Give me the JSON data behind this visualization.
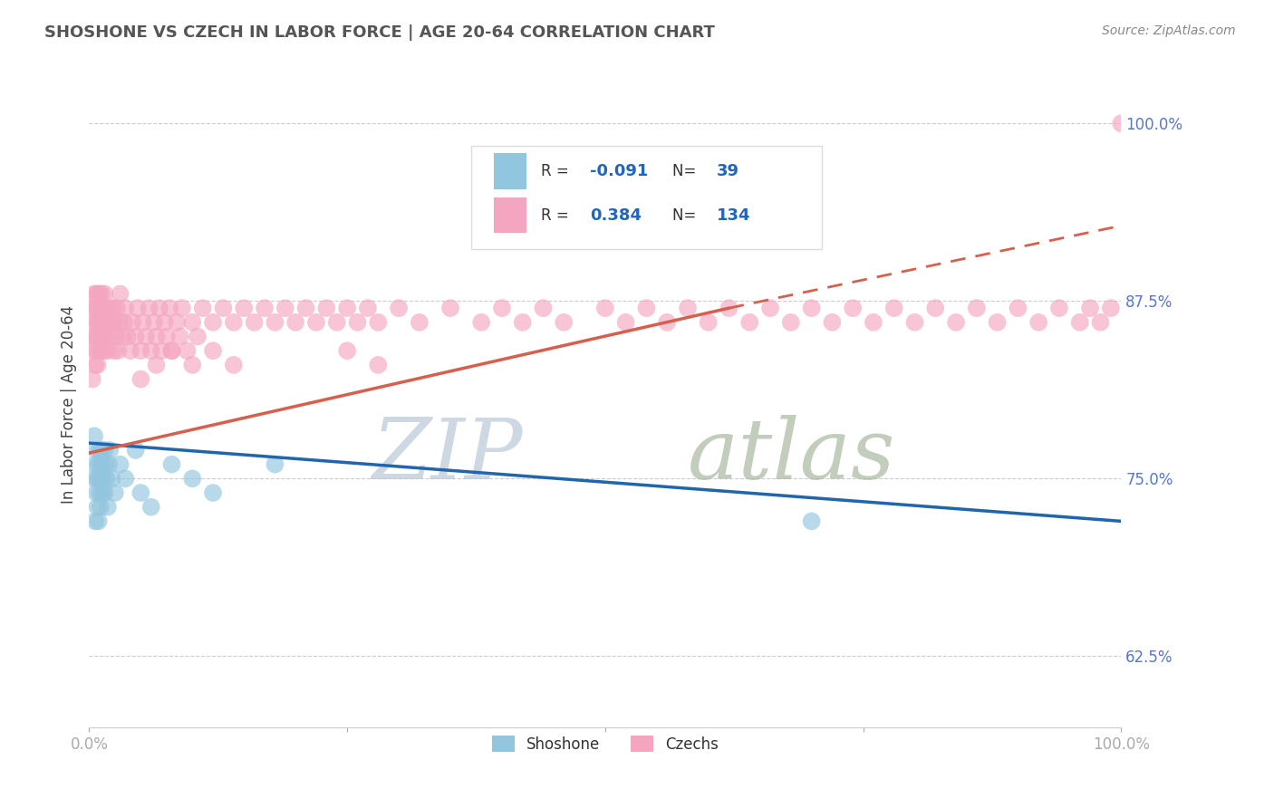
{
  "title": "SHOSHONE VS CZECH IN LABOR FORCE | AGE 20-64 CORRELATION CHART",
  "source_text": "Source: ZipAtlas.com",
  "ylabel": "In Labor Force | Age 20-64",
  "xlim": [
    0.0,
    1.0
  ],
  "ylim": [
    0.575,
    1.03
  ],
  "yticks": [
    0.625,
    0.75,
    0.875,
    1.0
  ],
  "ytick_labels": [
    "62.5%",
    "75.0%",
    "87.5%",
    "100.0%"
  ],
  "xticks": [
    0.0,
    0.25,
    0.5,
    0.75,
    1.0
  ],
  "xtick_labels": [
    "0.0%",
    "",
    "",
    "",
    "100.0%"
  ],
  "legend_r_shoshone": "-0.091",
  "legend_n_shoshone": "39",
  "legend_r_czech": "0.384",
  "legend_n_czech": "134",
  "shoshone_color": "#92c5de",
  "czech_color": "#f4a6c0",
  "trend_shoshone_color": "#2166ac",
  "trend_czech_color": "#d6604d",
  "watermark_zip_color": "#d0d8e8",
  "watermark_atlas_color": "#c8d0c0",
  "shoshone_x": [
    0.005,
    0.005,
    0.006,
    0.006,
    0.007,
    0.007,
    0.008,
    0.008,
    0.009,
    0.009,
    0.01,
    0.01,
    0.01,
    0.011,
    0.011,
    0.012,
    0.012,
    0.013,
    0.013,
    0.014,
    0.015,
    0.015,
    0.016,
    0.017,
    0.018,
    0.019,
    0.02,
    0.022,
    0.025,
    0.03,
    0.035,
    0.045,
    0.05,
    0.06,
    0.08,
    0.1,
    0.12,
    0.18,
    0.7
  ],
  "shoshone_y": [
    0.78,
    0.75,
    0.76,
    0.72,
    0.74,
    0.77,
    0.73,
    0.75,
    0.76,
    0.72,
    0.77,
    0.74,
    0.75,
    0.76,
    0.73,
    0.75,
    0.77,
    0.74,
    0.76,
    0.75,
    0.77,
    0.74,
    0.76,
    0.75,
    0.73,
    0.76,
    0.77,
    0.75,
    0.74,
    0.76,
    0.75,
    0.77,
    0.74,
    0.73,
    0.76,
    0.75,
    0.74,
    0.76,
    0.72
  ],
  "czech_x": [
    0.003,
    0.004,
    0.004,
    0.005,
    0.005,
    0.005,
    0.006,
    0.006,
    0.006,
    0.007,
    0.007,
    0.007,
    0.008,
    0.008,
    0.008,
    0.009,
    0.009,
    0.01,
    0.01,
    0.01,
    0.011,
    0.011,
    0.012,
    0.012,
    0.012,
    0.013,
    0.013,
    0.014,
    0.015,
    0.015,
    0.016,
    0.017,
    0.018,
    0.019,
    0.02,
    0.021,
    0.022,
    0.023,
    0.024,
    0.025,
    0.026,
    0.027,
    0.028,
    0.03,
    0.03,
    0.032,
    0.034,
    0.035,
    0.037,
    0.04,
    0.042,
    0.045,
    0.047,
    0.05,
    0.052,
    0.055,
    0.058,
    0.06,
    0.063,
    0.065,
    0.068,
    0.07,
    0.073,
    0.075,
    0.078,
    0.08,
    0.085,
    0.088,
    0.09,
    0.095,
    0.1,
    0.105,
    0.11,
    0.12,
    0.13,
    0.14,
    0.15,
    0.16,
    0.17,
    0.18,
    0.19,
    0.2,
    0.21,
    0.22,
    0.23,
    0.24,
    0.25,
    0.26,
    0.27,
    0.28,
    0.3,
    0.32,
    0.35,
    0.38,
    0.4,
    0.42,
    0.44,
    0.46,
    0.5,
    0.52,
    0.54,
    0.56,
    0.58,
    0.6,
    0.62,
    0.64,
    0.66,
    0.68,
    0.7,
    0.72,
    0.74,
    0.76,
    0.78,
    0.8,
    0.82,
    0.84,
    0.86,
    0.88,
    0.9,
    0.92,
    0.94,
    0.96,
    0.97,
    0.98,
    0.99,
    1.0,
    0.25,
    0.28,
    0.05,
    0.065,
    0.08,
    0.1,
    0.12,
    0.14
  ],
  "czech_y": [
    0.82,
    0.85,
    0.87,
    0.84,
    0.86,
    0.88,
    0.83,
    0.85,
    0.87,
    0.84,
    0.86,
    0.88,
    0.85,
    0.87,
    0.83,
    0.86,
    0.88,
    0.84,
    0.86,
    0.88,
    0.85,
    0.87,
    0.84,
    0.86,
    0.88,
    0.85,
    0.87,
    0.84,
    0.86,
    0.88,
    0.85,
    0.87,
    0.84,
    0.86,
    0.87,
    0.85,
    0.86,
    0.87,
    0.84,
    0.86,
    0.85,
    0.87,
    0.84,
    0.86,
    0.88,
    0.85,
    0.86,
    0.87,
    0.85,
    0.84,
    0.86,
    0.85,
    0.87,
    0.84,
    0.86,
    0.85,
    0.87,
    0.84,
    0.86,
    0.85,
    0.87,
    0.84,
    0.86,
    0.85,
    0.87,
    0.84,
    0.86,
    0.85,
    0.87,
    0.84,
    0.86,
    0.85,
    0.87,
    0.86,
    0.87,
    0.86,
    0.87,
    0.86,
    0.87,
    0.86,
    0.87,
    0.86,
    0.87,
    0.86,
    0.87,
    0.86,
    0.87,
    0.86,
    0.87,
    0.86,
    0.87,
    0.86,
    0.87,
    0.86,
    0.87,
    0.86,
    0.87,
    0.86,
    0.87,
    0.86,
    0.87,
    0.86,
    0.87,
    0.86,
    0.87,
    0.86,
    0.87,
    0.86,
    0.87,
    0.86,
    0.87,
    0.86,
    0.87,
    0.86,
    0.87,
    0.86,
    0.87,
    0.86,
    0.87,
    0.86,
    0.87,
    0.86,
    0.87,
    0.86,
    0.87,
    1.0,
    0.84,
    0.83,
    0.82,
    0.83,
    0.84,
    0.83,
    0.84,
    0.83
  ],
  "trend_blue_x0": 0.0,
  "trend_blue_x1": 1.0,
  "trend_blue_y0": 0.775,
  "trend_blue_y1": 0.72,
  "trend_pink_x0": 0.0,
  "trend_pink_x1": 0.62,
  "trend_pink_y0": 0.768,
  "trend_pink_y1": 0.87,
  "trend_pink_dash_x0": 0.62,
  "trend_pink_dash_x1": 1.0,
  "trend_pink_dash_y0": 0.87,
  "trend_pink_dash_y1": 0.928
}
